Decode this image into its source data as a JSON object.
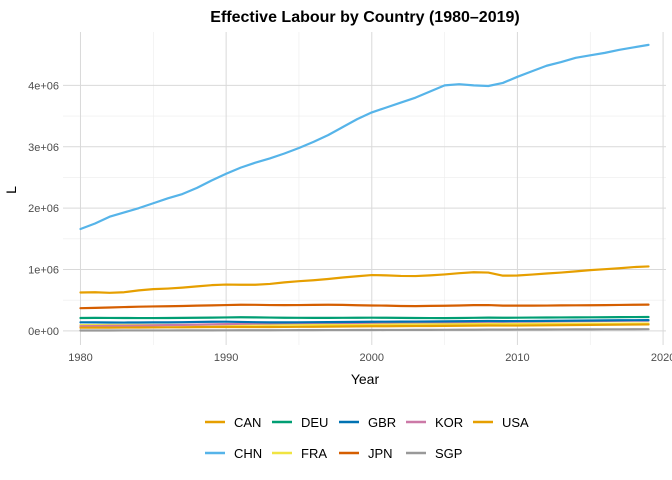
{
  "chart_data": {
    "type": "line",
    "title": "Effective Labour by Country (1980–2019)",
    "xlabel": "Year",
    "ylabel": "L",
    "xlim": [
      1978.8,
      2020.2
    ],
    "ylim": [
      -230000,
      4870000
    ],
    "x_ticks": [
      1980,
      1990,
      2000,
      2010,
      2020
    ],
    "y_ticks": [
      0,
      1000000,
      2000000,
      3000000,
      4000000
    ],
    "y_tick_labels": [
      "0e+00",
      "1e+06",
      "2e+06",
      "3e+06",
      "4e+06"
    ],
    "grid": true,
    "legend_position": "bottom",
    "x": [
      1980,
      1981,
      1982,
      1983,
      1984,
      1985,
      1986,
      1987,
      1988,
      1989,
      1990,
      1991,
      1992,
      1993,
      1994,
      1995,
      1996,
      1997,
      1998,
      1999,
      2000,
      2001,
      2002,
      2003,
      2004,
      2005,
      2006,
      2007,
      2008,
      2009,
      2010,
      2011,
      2012,
      2013,
      2014,
      2015,
      2016,
      2017,
      2018,
      2019
    ],
    "series": [
      {
        "name": "CAN",
        "color": "#E69F00",
        "values": [
          52000,
          53000,
          53500,
          54000,
          55000,
          56500,
          58000,
          59500,
          61000,
          62500,
          63500,
          63000,
          62500,
          63000,
          64500,
          66000,
          67500,
          69000,
          71000,
          73000,
          75000,
          76000,
          77000,
          78500,
          80000,
          82000,
          84000,
          86000,
          87500,
          86500,
          87000,
          89000,
          91000,
          93000,
          95000,
          97000,
          99000,
          101000,
          103000,
          105000
        ]
      },
      {
        "name": "CHN",
        "color": "#56B4E9",
        "values": [
          1660000,
          1750000,
          1860000,
          1930000,
          2000000,
          2080000,
          2160000,
          2230000,
          2330000,
          2450000,
          2560000,
          2660000,
          2740000,
          2810000,
          2890000,
          2980000,
          3080000,
          3190000,
          3320000,
          3450000,
          3560000,
          3640000,
          3720000,
          3800000,
          3900000,
          4000000,
          4020000,
          4000000,
          3990000,
          4040000,
          4140000,
          4230000,
          4320000,
          4380000,
          4450000,
          4490000,
          4530000,
          4580000,
          4620000,
          4660000
        ]
      },
      {
        "name": "DEU",
        "color": "#009E73",
        "values": [
          210000,
          212000,
          211000,
          210000,
          209000,
          209000,
          210000,
          212000,
          214000,
          216000,
          219000,
          222000,
          220000,
          217000,
          214000,
          213000,
          212000,
          212000,
          213000,
          214000,
          215000,
          214000,
          212000,
          210000,
          209000,
          208000,
          210000,
          213000,
          216000,
          214000,
          215000,
          217000,
          218000,
          219000,
          220000,
          221000,
          222000,
          224000,
          225000,
          226000
        ]
      },
      {
        "name": "FRA",
        "color": "#F0E442",
        "values": [
          95000,
          95000,
          95500,
          95500,
          95500,
          96000,
          96500,
          97000,
          98000,
          99000,
          100000,
          100500,
          100500,
          100500,
          101000,
          101500,
          102000,
          102500,
          103500,
          104500,
          106000,
          107000,
          108000,
          108500,
          109000,
          110000,
          111000,
          112000,
          113000,
          112500,
          113000,
          114000,
          114500,
          115000,
          115500,
          116000,
          116500,
          117000,
          118000,
          119000
        ]
      },
      {
        "name": "GBR",
        "color": "#0072B2",
        "values": [
          140000,
          139000,
          137000,
          136000,
          137000,
          138000,
          139000,
          142000,
          146000,
          149000,
          150000,
          146000,
          142000,
          139000,
          139000,
          140000,
          142000,
          143000,
          145000,
          147000,
          149000,
          150000,
          151000,
          152000,
          153000,
          155000,
          157000,
          159000,
          161000,
          159000,
          160000,
          161000,
          163000,
          165000,
          167000,
          169000,
          171000,
          173000,
          174000,
          175000
        ]
      },
      {
        "name": "JPN",
        "color": "#D55E00",
        "values": [
          370000,
          375000,
          381000,
          388000,
          394000,
          398000,
          401000,
          405000,
          411000,
          416000,
          421000,
          426000,
          425000,
          421000,
          420000,
          421000,
          424000,
          426000,
          424000,
          418000,
          414000,
          412000,
          406000,
          404000,
          407000,
          410000,
          414000,
          420000,
          421000,
          412000,
          411000,
          412000,
          413000,
          415000,
          417000,
          418000,
          420000,
          423000,
          426000,
          428000
        ]
      },
      {
        "name": "KOR",
        "color": "#CC79A7",
        "values": [
          75000,
          78000,
          81000,
          84000,
          87000,
          90000,
          94000,
          98000,
          102000,
          106000,
          110000,
          115000,
          119000,
          122000,
          125000,
          128000,
          131000,
          133000,
          130000,
          131000,
          134000,
          137000,
          140000,
          141000,
          142000,
          143000,
          145000,
          147000,
          148000,
          149000,
          151000,
          153000,
          155000,
          157000,
          159000,
          161000,
          163000,
          165000,
          166000,
          167000
        ]
      },
      {
        "name": "SGP",
        "color": "#999999",
        "values": [
          6000,
          6300,
          6600,
          6900,
          7200,
          7400,
          7600,
          8000,
          8400,
          8900,
          9400,
          9900,
          10400,
          10900,
          11400,
          12000,
          12600,
          13200,
          13700,
          14000,
          14600,
          15200,
          15600,
          16000,
          16600,
          17300,
          18100,
          19000,
          20000,
          20800,
          21500,
          22200,
          22900,
          23600,
          24200,
          24800,
          25400,
          26000,
          26600,
          27200
        ]
      },
      {
        "name": "USA",
        "color": "#E69F00",
        "values": [
          625000,
          630000,
          620000,
          630000,
          660000,
          680000,
          690000,
          705000,
          725000,
          745000,
          755000,
          752000,
          752000,
          765000,
          790000,
          810000,
          825000,
          845000,
          870000,
          890000,
          910000,
          905000,
          895000,
          893000,
          905000,
          920000,
          940000,
          955000,
          950000,
          900000,
          902000,
          918000,
          935000,
          950000,
          970000,
          990000,
          1005000,
          1020000,
          1040000,
          1050000
        ]
      }
    ],
    "legend_rows": [
      [
        "CAN",
        "DEU",
        "GBR",
        "KOR",
        "USA"
      ],
      [
        "CHN",
        "FRA",
        "JPN",
        "SGP"
      ]
    ]
  }
}
